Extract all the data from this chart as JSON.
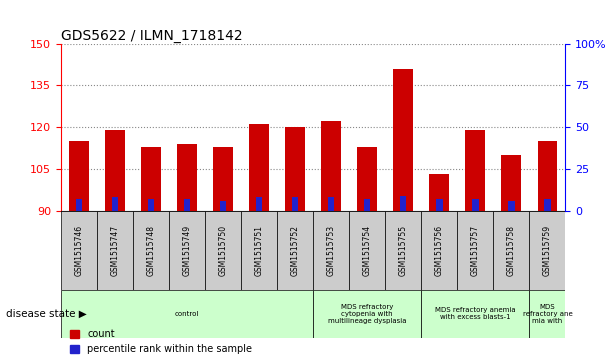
{
  "title": "GDS5622 / ILMN_1718142",
  "samples": [
    "GSM1515746",
    "GSM1515747",
    "GSM1515748",
    "GSM1515749",
    "GSM1515750",
    "GSM1515751",
    "GSM1515752",
    "GSM1515753",
    "GSM1515754",
    "GSM1515755",
    "GSM1515756",
    "GSM1515757",
    "GSM1515758",
    "GSM1515759"
  ],
  "count_values": [
    115,
    119,
    113,
    114,
    113,
    121,
    120,
    122,
    113,
    141,
    103,
    119,
    110,
    115
  ],
  "percentile_values": [
    7,
    8,
    7,
    7,
    6,
    8,
    8,
    8,
    7,
    9,
    7,
    7,
    6,
    7
  ],
  "ymin": 90,
  "ymax": 150,
  "yticks_left": [
    90,
    105,
    120,
    135,
    150
  ],
  "yticks_right": [
    0,
    25,
    50,
    75,
    100
  ],
  "bar_color_red": "#cc0000",
  "bar_color_blue": "#2222cc",
  "bar_width": 0.55,
  "blue_bar_width": 0.18,
  "grid_color": "#888888",
  "bg_sample_row": "#cccccc",
  "disease_groups": [
    {
      "label": "control",
      "start": 0,
      "end": 7
    },
    {
      "label": "MDS refractory\ncytopenia with\nmultilineage dysplasia",
      "start": 7,
      "end": 10
    },
    {
      "label": "MDS refractory anemia\nwith excess blasts-1",
      "start": 10,
      "end": 13
    },
    {
      "label": "MDS\nrefractory ane\nmia with",
      "start": 13,
      "end": 14
    }
  ],
  "disease_state_label": "disease state",
  "legend_count": "count",
  "legend_pct": "percentile rank within the sample"
}
